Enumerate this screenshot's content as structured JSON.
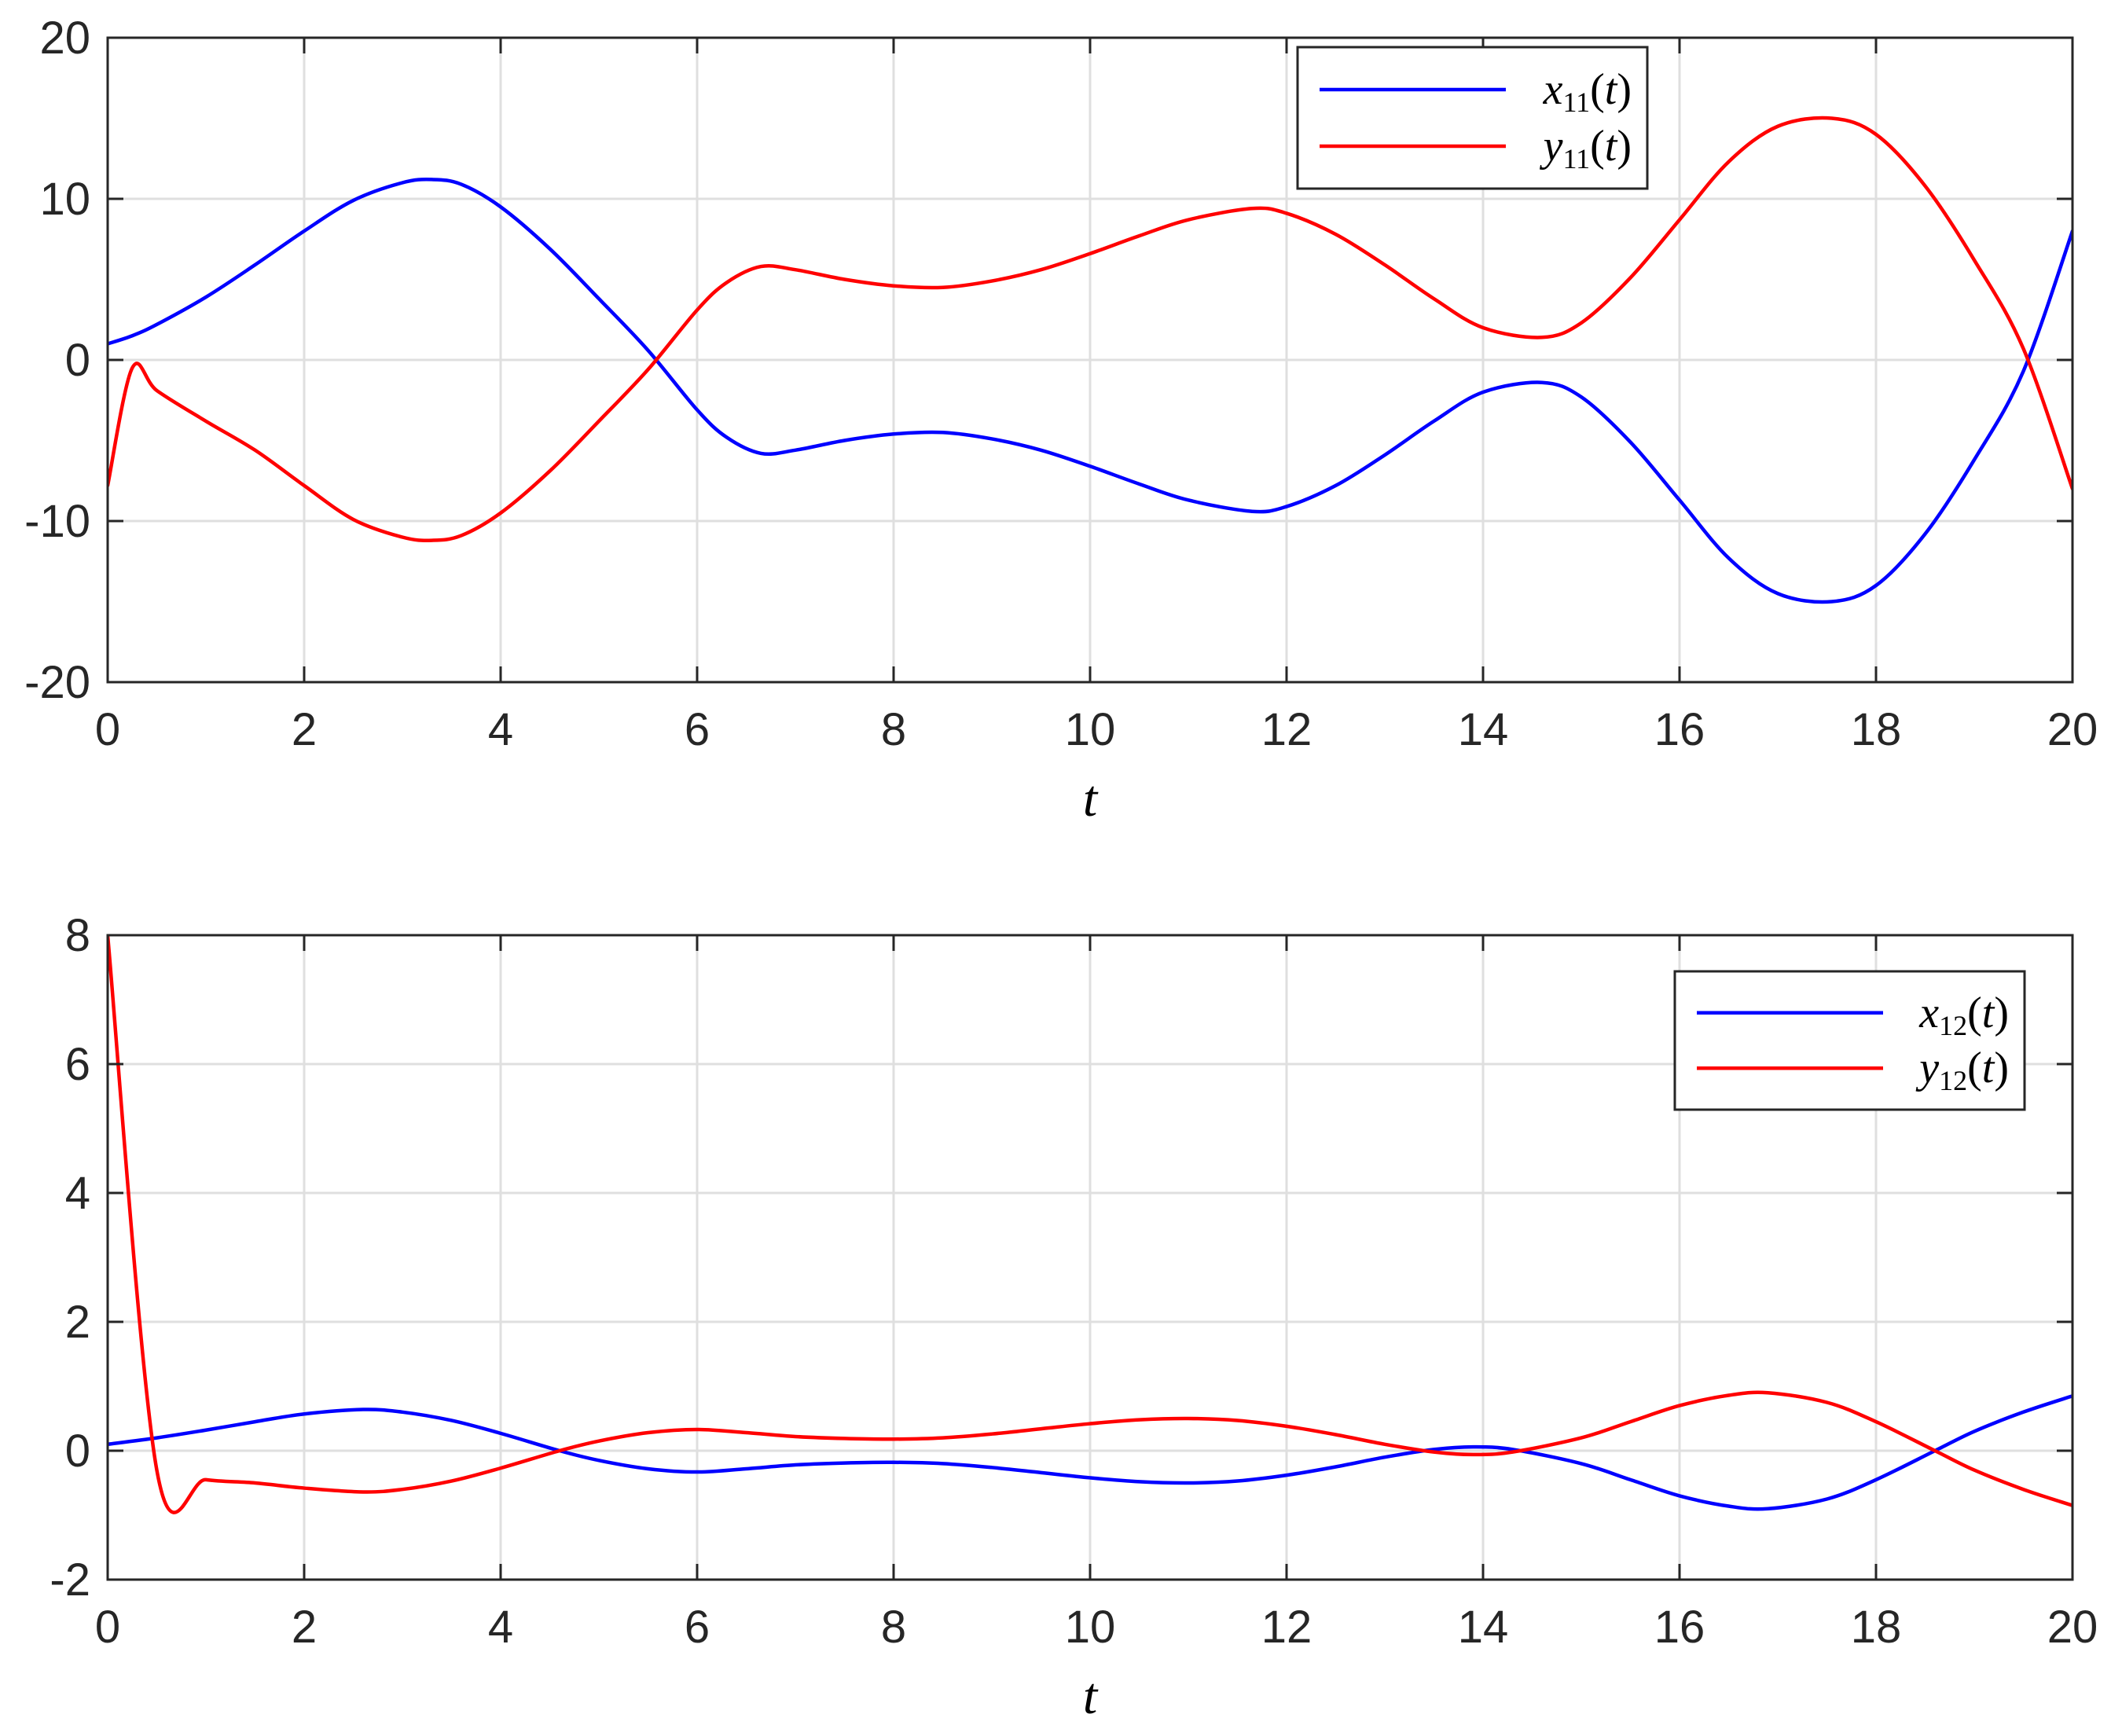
{
  "chart_data": [
    {
      "type": "line",
      "xlabel": "t",
      "ylabel": "",
      "xlim": [
        0,
        20
      ],
      "ylim": [
        -20,
        20
      ],
      "xticks": [
        0,
        2,
        4,
        6,
        8,
        10,
        12,
        14,
        16,
        18,
        20
      ],
      "yticks": [
        -20,
        -10,
        0,
        10,
        20
      ],
      "grid": true,
      "legend_position": "top-right",
      "x": [
        0,
        0.25,
        0.5,
        1,
        1.5,
        2,
        2.5,
        3,
        3.3,
        3.6,
        4,
        4.5,
        5,
        5.5,
        6,
        6.3,
        6.65,
        7,
        7.5,
        8,
        8.5,
        9,
        9.5,
        10,
        10.5,
        11,
        11.65,
        12,
        12.5,
        13,
        13.5,
        14,
        14.6,
        15,
        15.5,
        16,
        16.5,
        17,
        17.55,
        18,
        18.5,
        19,
        19.5,
        20
      ],
      "series": [
        {
          "name": "x11(t)",
          "base": "x",
          "subscript": "11",
          "color": "#0000ff",
          "values": [
            1.0,
            1.5,
            2.2,
            3.9,
            5.9,
            8.0,
            9.9,
            11.0,
            11.2,
            10.9,
            9.5,
            6.9,
            3.8,
            0.6,
            -3.1,
            -4.8,
            -5.8,
            -5.6,
            -5.0,
            -4.6,
            -4.5,
            -4.9,
            -5.6,
            -6.6,
            -7.7,
            -8.7,
            -9.4,
            -9.1,
            -7.8,
            -5.9,
            -3.8,
            -2.0,
            -1.4,
            -2.3,
            -5.1,
            -8.7,
            -12.3,
            -14.5,
            -15.0,
            -14.0,
            -10.8,
            -6.2,
            -0.7,
            8.0
          ]
        },
        {
          "name": "y11(t)",
          "base": "y",
          "subscript": "11",
          "color": "#ff0000",
          "values": [
            -7.8,
            -0.5,
            -1.9,
            -3.8,
            -5.6,
            -7.8,
            -9.9,
            -11.0,
            -11.2,
            -10.9,
            -9.5,
            -6.9,
            -3.8,
            -0.6,
            3.1,
            4.8,
            5.8,
            5.6,
            5.0,
            4.6,
            4.5,
            4.9,
            5.6,
            6.6,
            7.7,
            8.7,
            9.4,
            9.1,
            7.8,
            5.9,
            3.8,
            2.0,
            1.4,
            2.3,
            5.1,
            8.7,
            12.3,
            14.5,
            15.0,
            14.0,
            10.8,
            6.2,
            0.7,
            -8.0
          ]
        }
      ]
    },
    {
      "type": "line",
      "xlabel": "t",
      "ylabel": "",
      "xlim": [
        0,
        20
      ],
      "ylim": [
        -2,
        8
      ],
      "xticks": [
        0,
        2,
        4,
        6,
        8,
        10,
        12,
        14,
        16,
        18,
        20
      ],
      "yticks": [
        -2,
        0,
        2,
        4,
        6,
        8
      ],
      "grid": true,
      "legend_position": "top-right",
      "x": [
        0,
        0.5,
        1,
        1.5,
        2,
        2.6,
        3,
        3.5,
        4,
        4.6,
        5,
        5.5,
        6,
        6.5,
        7,
        7.5,
        8,
        8.5,
        9,
        9.5,
        10,
        10.5,
        11,
        11.5,
        12,
        12.5,
        13,
        13.5,
        13.9,
        14.3,
        15,
        15.5,
        16,
        16.5,
        16.9,
        17.5,
        18,
        18.6,
        19,
        19.5,
        20
      ],
      "series": [
        {
          "name": "x12(t)",
          "base": "x",
          "subscript": "12",
          "color": "#0000ff",
          "values": [
            0.1,
            0.2,
            0.32,
            0.45,
            0.57,
            0.64,
            0.6,
            0.47,
            0.27,
            0.0,
            -0.15,
            -0.28,
            -0.33,
            -0.28,
            -0.22,
            -0.19,
            -0.18,
            -0.2,
            -0.26,
            -0.34,
            -0.42,
            -0.48,
            -0.5,
            -0.47,
            -0.38,
            -0.25,
            -0.1,
            0.02,
            0.06,
            0.02,
            -0.2,
            -0.45,
            -0.7,
            -0.86,
            -0.9,
            -0.75,
            -0.45,
            0.0,
            0.3,
            0.6,
            0.85
          ]
        },
        {
          "name": "y12(t)",
          "base": "y",
          "subscript": "12",
          "color": "#ff0000",
          "values": [
            8.0,
            -0.3,
            -0.45,
            -0.5,
            -0.58,
            -0.64,
            -0.6,
            -0.47,
            -0.27,
            0.0,
            0.15,
            0.28,
            0.33,
            0.28,
            0.22,
            0.19,
            0.18,
            0.2,
            0.26,
            0.34,
            0.42,
            0.48,
            0.5,
            0.47,
            0.38,
            0.25,
            0.1,
            -0.02,
            -0.06,
            -0.02,
            0.2,
            0.45,
            0.7,
            0.86,
            0.9,
            0.75,
            0.45,
            0.0,
            -0.3,
            -0.6,
            -0.85
          ]
        }
      ]
    }
  ]
}
